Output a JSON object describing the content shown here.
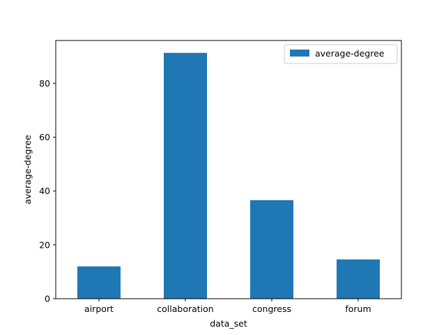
{
  "chart_data": {
    "type": "bar",
    "categories": [
      "airport",
      "collaboration",
      "congress",
      "forum"
    ],
    "series": [
      {
        "name": "average-degree",
        "values": [
          12.0,
          91.3,
          36.6,
          14.6
        ],
        "color": "#1f77b4"
      }
    ],
    "xlabel": "data_set",
    "ylabel": "average-degree",
    "ylim": [
      0,
      95.9
    ],
    "yticks": [
      0,
      20,
      40,
      60,
      80
    ],
    "grid": false,
    "legend": "top-right"
  }
}
